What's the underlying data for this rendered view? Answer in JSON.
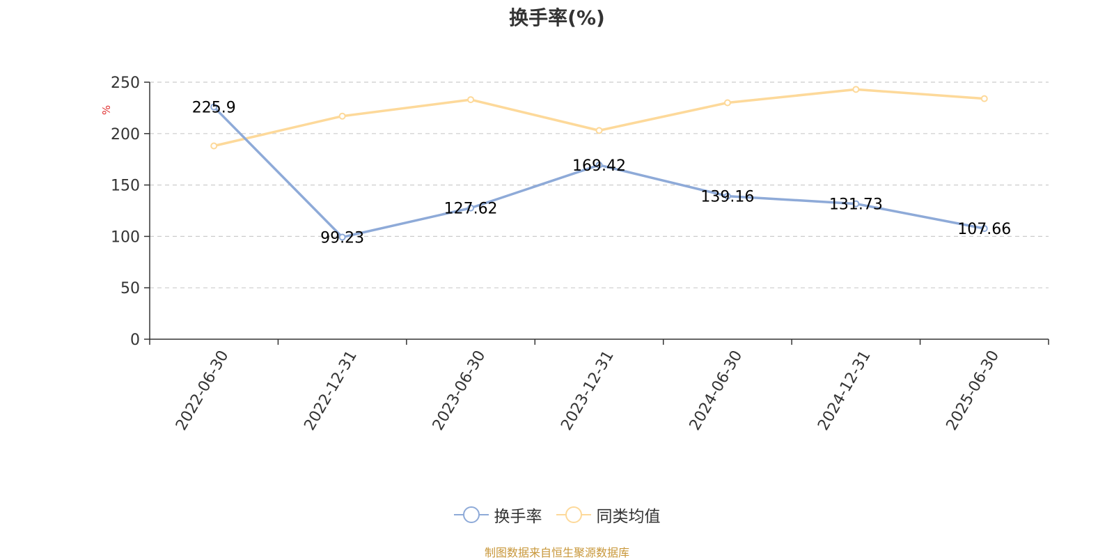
{
  "chart_data": {
    "type": "line",
    "title": "换手率(%)",
    "ylabel": "%",
    "xlabel": "",
    "x": [
      "2022-06-30",
      "2022-12-31",
      "2023-06-30",
      "2023-12-31",
      "2024-06-30",
      "2024-12-31",
      "2025-06-30"
    ],
    "ylim": [
      0,
      250
    ],
    "yticks": [
      0,
      50,
      100,
      150,
      200,
      250
    ],
    "grid": true,
    "legend_position": "bottom-center",
    "series": [
      {
        "name": "换手率",
        "color": "#8eaad8",
        "values": [
          225.9,
          99.23,
          127.62,
          169.42,
          139.16,
          131.73,
          107.66
        ],
        "labels": [
          "225.9",
          "99.23",
          "127.62",
          "169.42",
          "139.16",
          "131.73",
          "107.66"
        ],
        "show_labels": true
      },
      {
        "name": "同类均值",
        "color": "#fdd99a",
        "values": [
          188,
          217,
          233,
          203,
          230,
          243,
          234
        ],
        "show_labels": false
      }
    ]
  },
  "source_note": "制图数据来自恒生聚源数据库",
  "colors": {
    "axis": "#333333",
    "grid": "#cccccc",
    "unit": "#e03030",
    "source": "#c8973a"
  }
}
